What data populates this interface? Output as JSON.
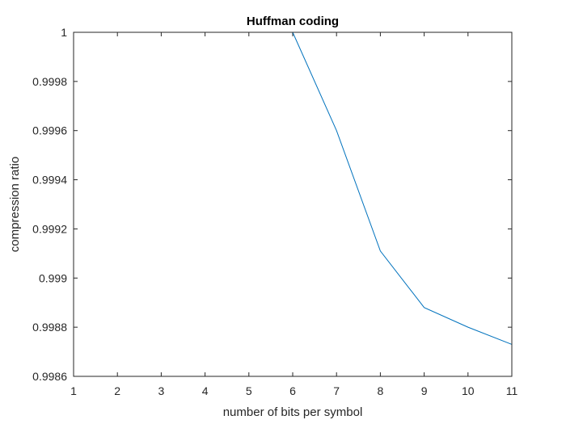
{
  "chart_data": {
    "type": "line",
    "title": "Huffman coding",
    "xlabel": "number of bits per symbol",
    "ylabel": "compression ratio",
    "xlim": [
      1,
      11
    ],
    "ylim": [
      0.9986,
      1
    ],
    "xticks": [
      1,
      2,
      3,
      4,
      5,
      6,
      7,
      8,
      9,
      10,
      11
    ],
    "xtick_labels": [
      "1",
      "2",
      "3",
      "4",
      "5",
      "6",
      "7",
      "8",
      "9",
      "10",
      "11"
    ],
    "yticks": [
      0.9986,
      0.9988,
      0.999,
      0.9992,
      0.9994,
      0.9996,
      0.9998,
      1
    ],
    "ytick_labels": [
      "0.9986",
      "0.9988",
      "0.999",
      "0.9992",
      "0.9994",
      "0.9996",
      "0.9998",
      "1"
    ],
    "grid": false,
    "box": true,
    "series": [
      {
        "color": "#0072BD",
        "x": [
          1,
          2,
          3,
          4,
          5,
          6,
          7,
          8,
          9,
          10,
          11
        ],
        "y": [
          1.0,
          1.0,
          1.0,
          1.0,
          1.0,
          1.0,
          0.9996,
          0.99911,
          0.99888,
          0.9988,
          0.99873
        ]
      }
    ]
  }
}
